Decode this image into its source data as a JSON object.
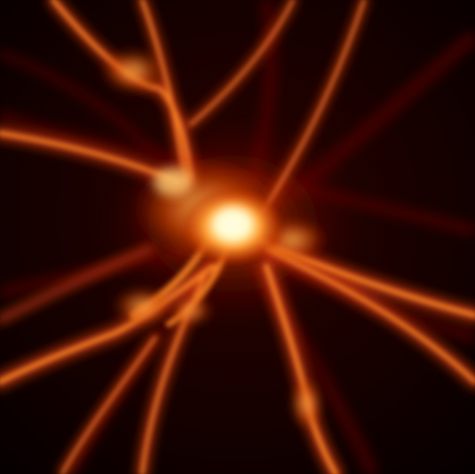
{
  "image": {
    "subject": "filamentary-structure-glow",
    "colors": {
      "background": "#0a0000",
      "deep_red": "#3a0300",
      "red": "#8a1400",
      "orange": "#e0500a",
      "bright_orange": "#ff9a2e",
      "hot_yellow": "#fff2a0",
      "core_white": "#fffde0"
    }
  }
}
